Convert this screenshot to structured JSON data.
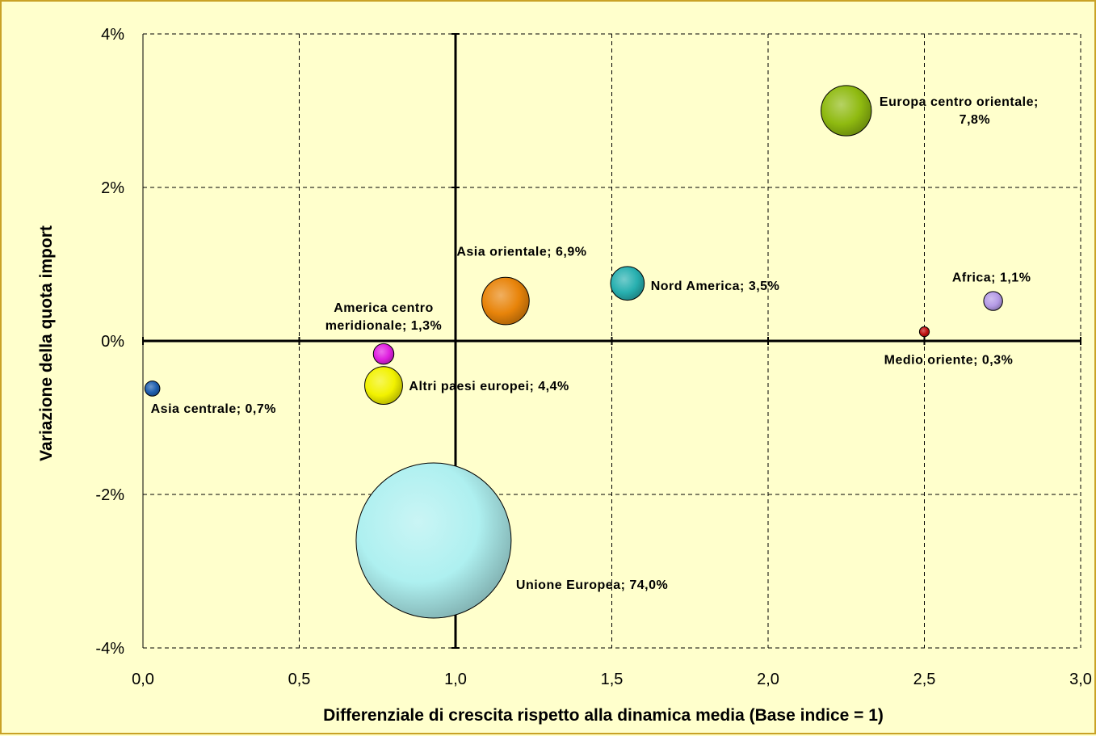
{
  "chart_data": {
    "type": "bubble",
    "xlabel": "Differenziale di crescita rispetto alla dinamica media (Base indice = 1)",
    "ylabel": "Variazione della quota import",
    "xlim": [
      0,
      3
    ],
    "ylim": [
      -4,
      4
    ],
    "x_ticks": [
      "0,0",
      "0,5",
      "1,0",
      "1,5",
      "2,0",
      "2,5",
      "3,0"
    ],
    "y_ticks": [
      "4%",
      "2%",
      "0%",
      "-2%",
      "-4%"
    ],
    "grid": "dashed",
    "series": [
      {
        "name": "Asia centrale",
        "share": "0,7%",
        "x": 0.03,
        "y": -0.62,
        "size": 0.7,
        "color": "#1f5fae",
        "label_lines": [
          "Asia centrale; 0,7%"
        ]
      },
      {
        "name": "America centro meridionale",
        "share": "1,3%",
        "x": 0.77,
        "y": -0.17,
        "size": 1.3,
        "color": "#e020e0",
        "label_lines": [
          "America centro",
          "meridionale; 1,3%"
        ]
      },
      {
        "name": "Altri paesi europei",
        "share": "4,4%",
        "x": 0.77,
        "y": -0.58,
        "size": 4.4,
        "color": "#f2f200",
        "label_lines": [
          "Altri paesi europei; 4,4%"
        ]
      },
      {
        "name": "Asia orientale",
        "share": "6,9%",
        "x": 1.16,
        "y": 0.52,
        "size": 6.9,
        "color": "#e8840a",
        "label_lines": [
          "Asia orientale; 6,9%"
        ]
      },
      {
        "name": "Nord America",
        "share": "3,5%",
        "x": 1.55,
        "y": 0.75,
        "size": 3.5,
        "color": "#28b0b0",
        "label_lines": [
          "Nord America; 3,5%"
        ]
      },
      {
        "name": "Europa centro orientale",
        "share": "7,8%",
        "x": 2.25,
        "y": 3.0,
        "size": 7.8,
        "color": "#8fba10",
        "label_lines": [
          "Europa centro orientale;",
          "7,8%"
        ]
      },
      {
        "name": "Africa",
        "share": "1,1%",
        "x": 2.72,
        "y": 0.52,
        "size": 1.1,
        "color": "#b59be6",
        "label_lines": [
          "Africa; 1,1%"
        ]
      },
      {
        "name": "Medio oriente",
        "share": "0,3%",
        "x": 2.5,
        "y": 0.12,
        "size": 0.3,
        "color": "#c01010",
        "label_lines": [
          "Medio oriente; 0,3%"
        ]
      },
      {
        "name": "Unione Europea",
        "share": "74,0%",
        "x": 0.93,
        "y": -2.6,
        "size": 74.0,
        "color": "#aef0f0",
        "label_lines": [
          "Unione Europea; 74,0%"
        ]
      }
    ]
  }
}
